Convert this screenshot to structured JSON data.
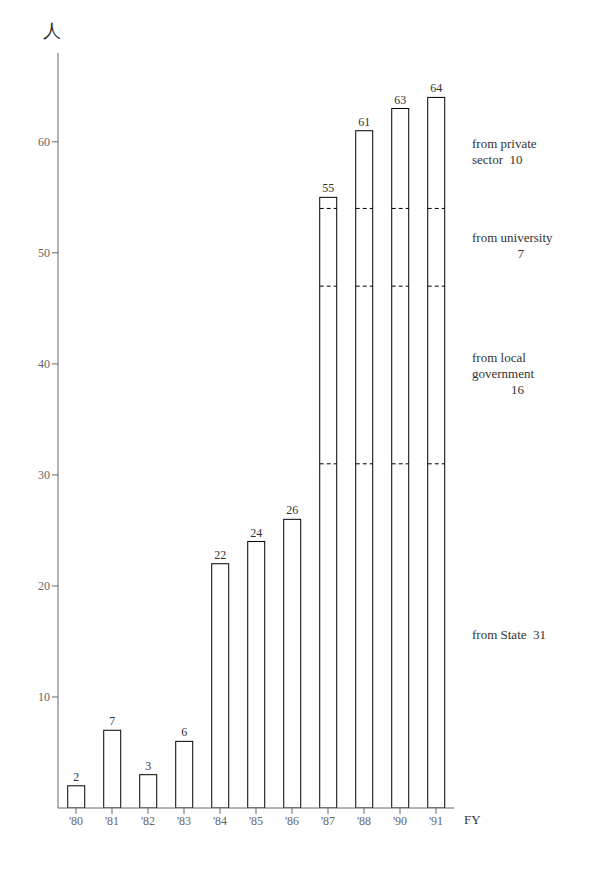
{
  "chart_data": {
    "type": "bar",
    "categories": [
      "'80",
      "'81",
      "'82",
      "'83",
      "'84",
      "'85",
      "'86",
      "'87",
      "'88",
      "'90",
      "'91"
    ],
    "values": [
      2,
      7,
      3,
      6,
      22,
      24,
      26,
      55,
      61,
      63,
      64
    ],
    "color": "#ffffff",
    "ylim": [
      0,
      68
    ],
    "yticks": [
      10,
      20,
      30,
      40,
      50,
      60
    ],
    "ylabel": "人",
    "xlabel": "FY",
    "data_labels": true,
    "grid": false,
    "dashed_levels": [
      31,
      47,
      54
    ],
    "annotations": [
      "from private\nsector  10",
      "from university\n              7",
      "from local\ngovernment\n            16",
      "from State  31"
    ]
  }
}
